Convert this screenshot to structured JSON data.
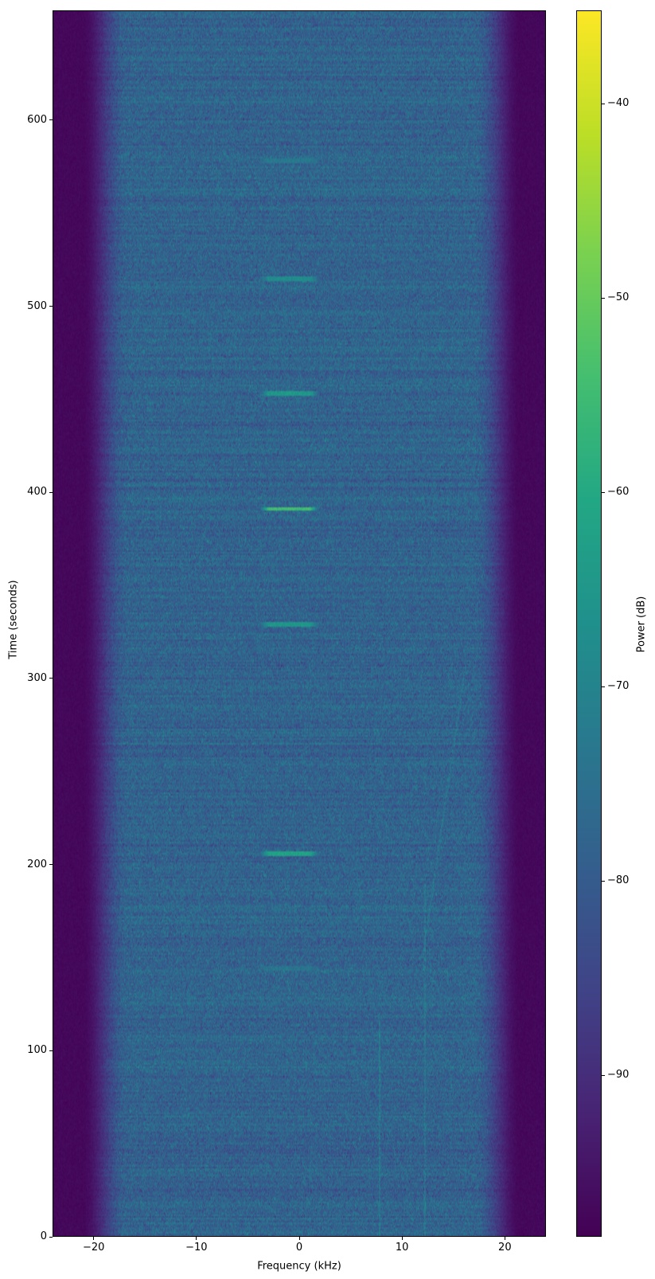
{
  "chart_data": {
    "type": "heatmap",
    "title": "",
    "xlabel": "Frequency (kHz)",
    "ylabel": "Time (seconds)",
    "xlim": [
      -24,
      24
    ],
    "ylim": [
      0,
      659
    ],
    "xticks": [
      -20,
      -10,
      0,
      10,
      20
    ],
    "xtick_labels": [
      "−20",
      "−10",
      "0",
      "10",
      "20"
    ],
    "yticks": [
      0,
      100,
      200,
      300,
      400,
      500,
      600
    ],
    "ytick_labels": [
      "0",
      "100",
      "200",
      "300",
      "400",
      "500",
      "600"
    ],
    "colormap": "viridis",
    "colorbar": {
      "label": "Power (dB)",
      "clim": [
        -98.3,
        -35.2
      ],
      "ticks": [
        -40,
        -50,
        -60,
        -70,
        -80,
        -90
      ],
      "tick_labels": [
        "−40",
        "−50",
        "−60",
        "−70",
        "−80",
        "−90"
      ]
    },
    "background_power_db": -78,
    "band_edge_rolloff_khz": [
      17,
      21.5
    ],
    "out_of_band_power_db": -97,
    "bursts": [
      {
        "time_s": 144,
        "freq_khz": [
          -3.8,
          1.9
        ],
        "power_db": -74
      },
      {
        "time_s": 206,
        "freq_khz": [
          -3.8,
          1.9
        ],
        "power_db": -62
      },
      {
        "time_s": 329,
        "freq_khz": [
          -3.8,
          1.9
        ],
        "power_db": -65
      },
      {
        "time_s": 391,
        "freq_khz": [
          -3.8,
          1.9
        ],
        "power_db": -55
      },
      {
        "time_s": 453,
        "freq_khz": [
          -3.8,
          1.9
        ],
        "power_db": -65
      },
      {
        "time_s": 515,
        "freq_khz": [
          -3.8,
          1.9
        ],
        "power_db": -68
      },
      {
        "time_s": 578,
        "freq_khz": [
          -3.8,
          1.9
        ],
        "power_db": -73
      }
    ],
    "grid": false
  }
}
